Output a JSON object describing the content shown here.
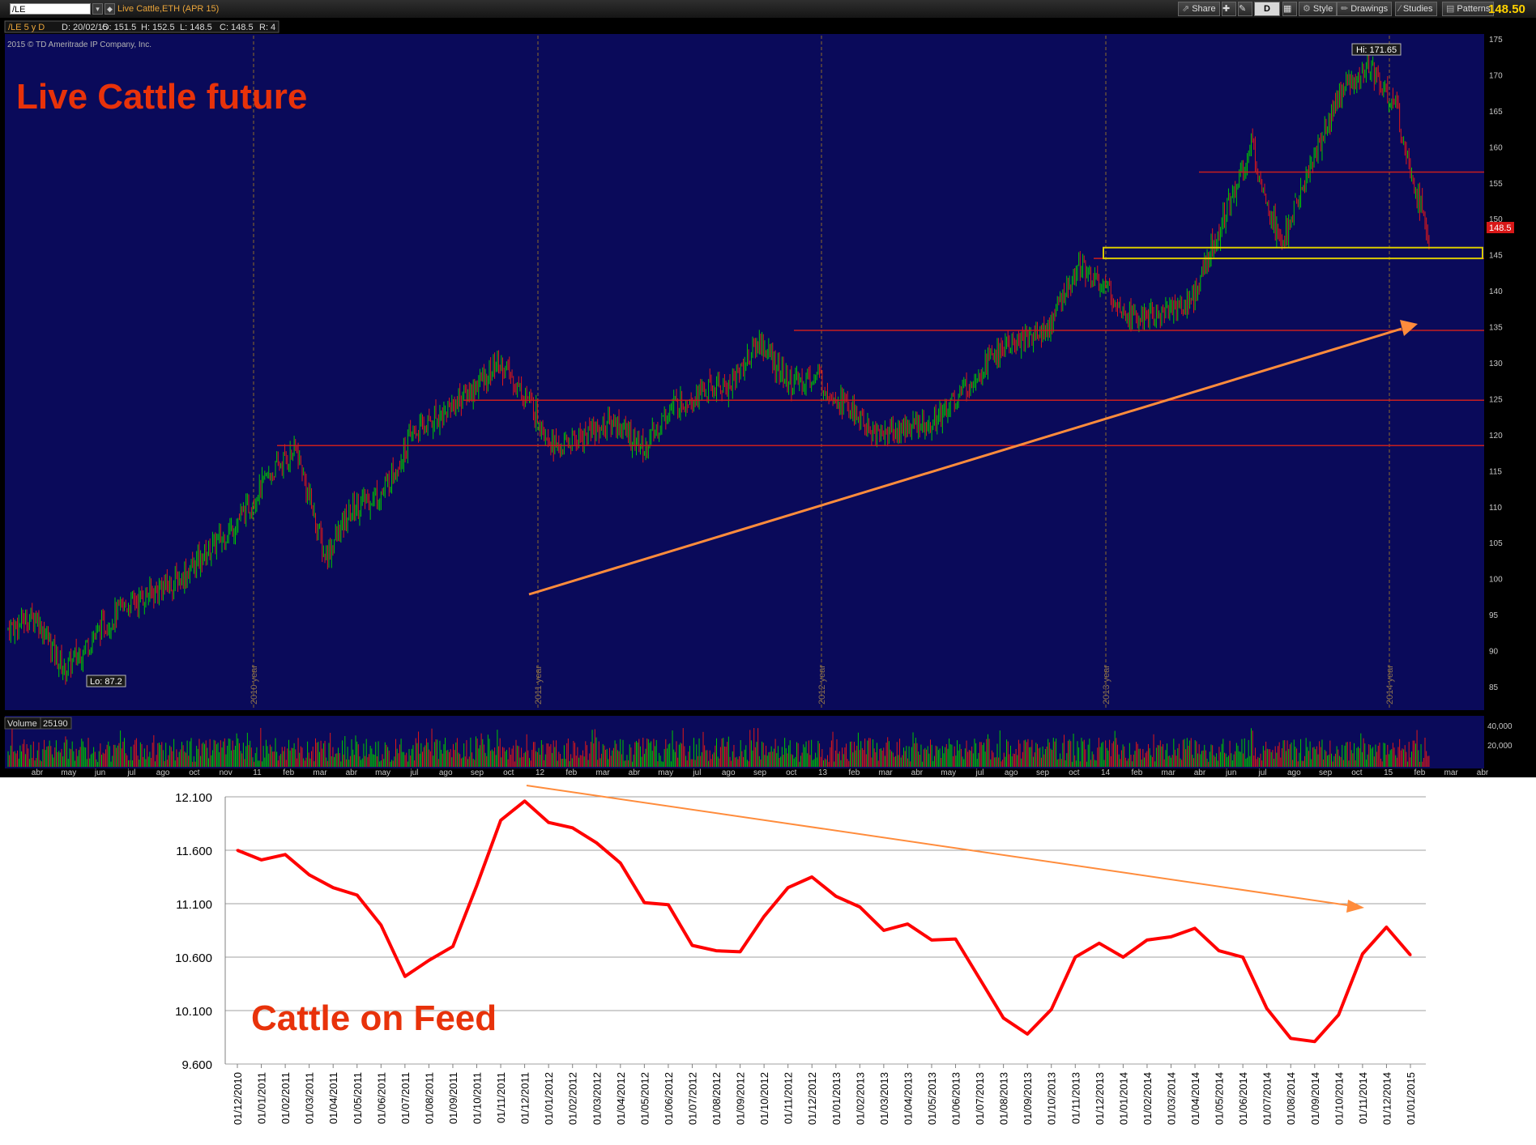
{
  "toolbar": {
    "symbol": "/LE",
    "description": "Live Cattle,ETH (APR 15)",
    "buttons": {
      "share": "Share",
      "style": "Style",
      "drawings": "Drawings",
      "studies": "Studies",
      "patterns": "Patterns",
      "period": "D"
    },
    "last_price": "148.50"
  },
  "price_chart": {
    "info": {
      "title": "/LE 5 y D",
      "date": "D: 20/02/15",
      "open": "O: 151.5",
      "high": "H: 152.5",
      "low": "L: 148.5",
      "close": "C: 148.5",
      "range": "R: 4"
    },
    "copyright": "2015 © TD Ameritrade IP Company, Inc.",
    "headline": "Live Cattle future",
    "hi_label": "Hi: 171.65",
    "lo_label": "Lo: 87.2",
    "price_tag": "148.5",
    "y_ticks": [
      "85",
      "90",
      "95",
      "100",
      "105",
      "110",
      "115",
      "120",
      "125",
      "130",
      "135",
      "140",
      "145",
      "150",
      "155",
      "160",
      "165",
      "170",
      "175"
    ],
    "year_labels": [
      "2010 year",
      "2011 year",
      "2012 year",
      "2013 year",
      "2014 year"
    ],
    "volume_label": "Volume",
    "volume_value": "25190",
    "volume_ticks": [
      "40,000",
      "20,000"
    ],
    "x_labels": [
      "abr",
      "may",
      "jun",
      "jul",
      "ago",
      "oct",
      "nov",
      "11",
      "feb",
      "mar",
      "abr",
      "may",
      "jul",
      "ago",
      "sep",
      "oct",
      "12",
      "feb",
      "mar",
      "abr",
      "may",
      "jul",
      "ago",
      "sep",
      "oct",
      "13",
      "feb",
      "mar",
      "abr",
      "may",
      "jul",
      "ago",
      "sep",
      "oct",
      "14",
      "feb",
      "mar",
      "abr",
      "jun",
      "jul",
      "ago",
      "sep",
      "oct",
      "15",
      "feb",
      "mar",
      "abr"
    ],
    "colors": {
      "bg": "#0a0a5a",
      "up": "#00c800",
      "down": "#e01818",
      "support": "#c81e1e",
      "trend": "#ff8c3c",
      "box": "#d8c800",
      "axis_text": "#c8c8c8",
      "headline": "#e8320a"
    }
  },
  "chart_data": [
    {
      "type": "bar",
      "title": "Live Cattle future",
      "symbol": "/LE",
      "ylim": [
        85,
        175
      ],
      "y_ticks": [
        85,
        90,
        95,
        100,
        105,
        110,
        115,
        120,
        125,
        130,
        135,
        140,
        145,
        150,
        155,
        160,
        165,
        170,
        175
      ],
      "x": [
        "2010-03",
        "2010-05",
        "2010-06",
        "2010-07",
        "2010-09",
        "2010-11",
        "2010-12",
        "2011-02",
        "2011-03",
        "2011-04",
        "2011-05",
        "2011-06",
        "2011-08",
        "2011-09",
        "2011-10",
        "2011-12",
        "2012-01",
        "2012-02",
        "2012-03",
        "2012-04",
        "2012-05",
        "2012-06",
        "2012-07",
        "2012-09",
        "2012-10",
        "2012-12",
        "2013-01",
        "2013-02",
        "2013-03",
        "2013-04",
        "2013-05",
        "2013-06",
        "2013-07",
        "2013-08",
        "2013-10",
        "2013-11",
        "2014-01",
        "2014-02",
        "2014-03",
        "2014-04",
        "2014-05",
        "2014-06",
        "2014-07",
        "2014-08",
        "2014-09",
        "2014-10",
        "2014-11",
        "2014-12",
        "2015-01",
        "2015-02"
      ],
      "series": [
        {
          "name": "Close (approx.)",
          "values": [
            93,
            95,
            87.2,
            92,
            96,
            98,
            100,
            104,
            108,
            114,
            118,
            103,
            110,
            112,
            120,
            123,
            126,
            130,
            125,
            118,
            120,
            122,
            118,
            124,
            126,
            127,
            133,
            127,
            128,
            124,
            120,
            121,
            122,
            126,
            131,
            133,
            135,
            144,
            140,
            136,
            137,
            139,
            150,
            160,
            146,
            157,
            167,
            171.65,
            165,
            148.5
          ]
        }
      ],
      "support_levels": [
        118.5,
        124.8,
        134.5,
        144.5,
        156.5
      ],
      "resistance_box": [
        144.5,
        146
      ],
      "annotations": {
        "high": "Hi: 171.65",
        "low": "Lo: 87.2",
        "last": "148.5"
      },
      "volume": {
        "label": "Volume",
        "last": 25190,
        "y_ticks": [
          20000,
          40000
        ]
      }
    },
    {
      "type": "line",
      "title": "Cattle on Feed",
      "ylim": [
        9600,
        12100
      ],
      "y_ticks": [
        "9.600",
        "10.100",
        "10.600",
        "11.100",
        "11.600",
        "12.100"
      ],
      "categories": [
        "01/12/2010",
        "01/01/2011",
        "01/02/2011",
        "01/03/2011",
        "01/04/2011",
        "01/05/2011",
        "01/06/2011",
        "01/07/2011",
        "01/08/2011",
        "01/09/2011",
        "01/10/2011",
        "01/11/2011",
        "01/12/2011",
        "01/01/2012",
        "01/02/2012",
        "01/03/2012",
        "01/04/2012",
        "01/05/2012",
        "01/06/2012",
        "01/07/2012",
        "01/08/2012",
        "01/09/2012",
        "01/10/2012",
        "01/11/2012",
        "01/12/2012",
        "01/01/2013",
        "01/02/2013",
        "01/03/2013",
        "01/04/2013",
        "01/05/2013",
        "01/06/2013",
        "01/07/2013",
        "01/08/2013",
        "01/09/2013",
        "01/10/2013",
        "01/11/2013",
        "01/12/2013",
        "01/01/2014",
        "01/02/2014",
        "01/03/2014",
        "01/04/2014",
        "01/05/2014",
        "01/06/2014",
        "01/07/2014",
        "01/08/2014",
        "01/09/2014",
        "01/10/2014",
        "01/11/2014",
        "01/12/2014",
        "01/01/2015"
      ],
      "series": [
        {
          "name": "Cattle on Feed",
          "values": [
            11600,
            11510,
            11560,
            11370,
            11250,
            11180,
            10900,
            10420,
            10570,
            10700,
            11270,
            11880,
            12060,
            11860,
            11810,
            11670,
            11480,
            11110,
            11090,
            10710,
            10660,
            10650,
            10980,
            11250,
            11350,
            11170,
            11070,
            10850,
            10910,
            10760,
            10770,
            10400,
            10030,
            9880,
            10110,
            10600,
            10730,
            10600,
            10760,
            10790,
            10870,
            10660,
            10600,
            10120,
            9840,
            9810,
            10060,
            10630,
            10880,
            10620
          ]
        }
      ],
      "colors": {
        "line": "#ff0000",
        "trend": "#ff8c3c",
        "headline": "#e8320a"
      }
    }
  ]
}
